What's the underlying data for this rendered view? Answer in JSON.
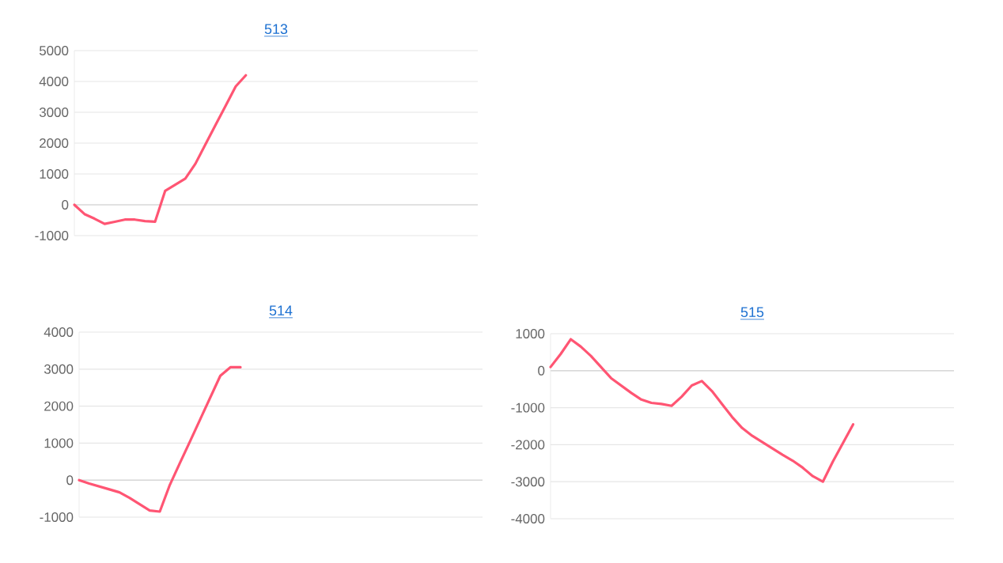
{
  "chart_data": [
    {
      "type": "line",
      "title": "513",
      "categories": [
        null,
        null,
        null,
        null,
        null,
        null,
        null,
        null,
        null,
        null,
        null,
        null,
        null,
        null,
        null,
        null,
        null,
        null,
        null,
        null,
        null,
        null,
        null,
        null,
        null,
        null,
        null,
        null,
        null,
        null,
        null,
        null,
        null,
        null,
        null,
        null,
        null,
        null,
        null,
        null,
        null
      ],
      "series": [
        {
          "color": "#ff5573",
          "values": [
            0,
            -300,
            -450,
            -620,
            -550,
            -480,
            -480,
            -530,
            -550,
            450,
            650,
            850,
            1330,
            1960,
            2590,
            3210,
            3840,
            4200,
            null,
            null,
            null,
            null,
            null,
            null,
            null,
            null,
            null,
            null,
            null,
            null,
            null,
            null,
            null,
            null,
            null,
            null,
            null,
            null,
            null,
            null,
            null
          ]
        }
      ],
      "ylim": [
        -1000,
        5000
      ],
      "yticks": [
        -1000,
        0,
        1000,
        2000,
        3000,
        4000,
        5000
      ],
      "grid": "y",
      "tick_labels": "y"
    },
    {
      "type": "line",
      "title": "514",
      "categories": [
        null,
        null,
        null,
        null,
        null,
        null,
        null,
        null,
        null,
        null,
        null,
        null,
        null,
        null,
        null,
        null,
        null,
        null,
        null,
        null,
        null,
        null,
        null,
        null,
        null,
        null,
        null,
        null,
        null,
        null,
        null,
        null,
        null,
        null,
        null,
        null,
        null,
        null,
        null,
        null,
        null
      ],
      "series": [
        {
          "color": "#ff5573",
          "values": [
            0,
            -90,
            -170,
            -250,
            -330,
            -480,
            -650,
            -820,
            -850,
            -125,
            465,
            1050,
            1640,
            2230,
            2820,
            3050,
            3050,
            null,
            null,
            null,
            null,
            null,
            null,
            null,
            null,
            null,
            null,
            null,
            null,
            null,
            null,
            null,
            null,
            null,
            null,
            null,
            null,
            null,
            null,
            null,
            null
          ]
        }
      ],
      "ylim": [
        -1000,
        4000
      ],
      "yticks": [
        -1000,
        0,
        1000,
        2000,
        3000,
        4000
      ],
      "grid": "y",
      "tick_labels": "y"
    },
    {
      "type": "line",
      "title": "515",
      "categories": [
        null,
        null,
        null,
        null,
        null,
        null,
        null,
        null,
        null,
        null,
        null,
        null,
        null,
        null,
        null,
        null,
        null,
        null,
        null,
        null,
        null,
        null,
        null,
        null,
        null,
        null,
        null,
        null,
        null,
        null,
        null,
        null,
        null,
        null,
        null,
        null,
        null,
        null,
        null,
        null,
        null
      ],
      "series": [
        {
          "color": "#ff5573",
          "values": [
            100,
            450,
            850,
            650,
            400,
            100,
            -200,
            -400,
            -600,
            -780,
            -870,
            -900,
            -950,
            -700,
            -400,
            -280,
            -550,
            -900,
            -1250,
            -1550,
            -1760,
            -1930,
            -2100,
            -2270,
            -2430,
            -2620,
            -2850,
            -3000,
            -2450,
            -1950,
            -1450,
            null,
            null,
            null,
            null,
            null,
            null,
            null,
            null,
            null,
            null
          ]
        }
      ],
      "ylim": [
        -4000,
        1000
      ],
      "yticks": [
        -4000,
        -3000,
        -2000,
        -1000,
        0,
        1000
      ],
      "grid": "y",
      "tick_labels": "y"
    }
  ]
}
